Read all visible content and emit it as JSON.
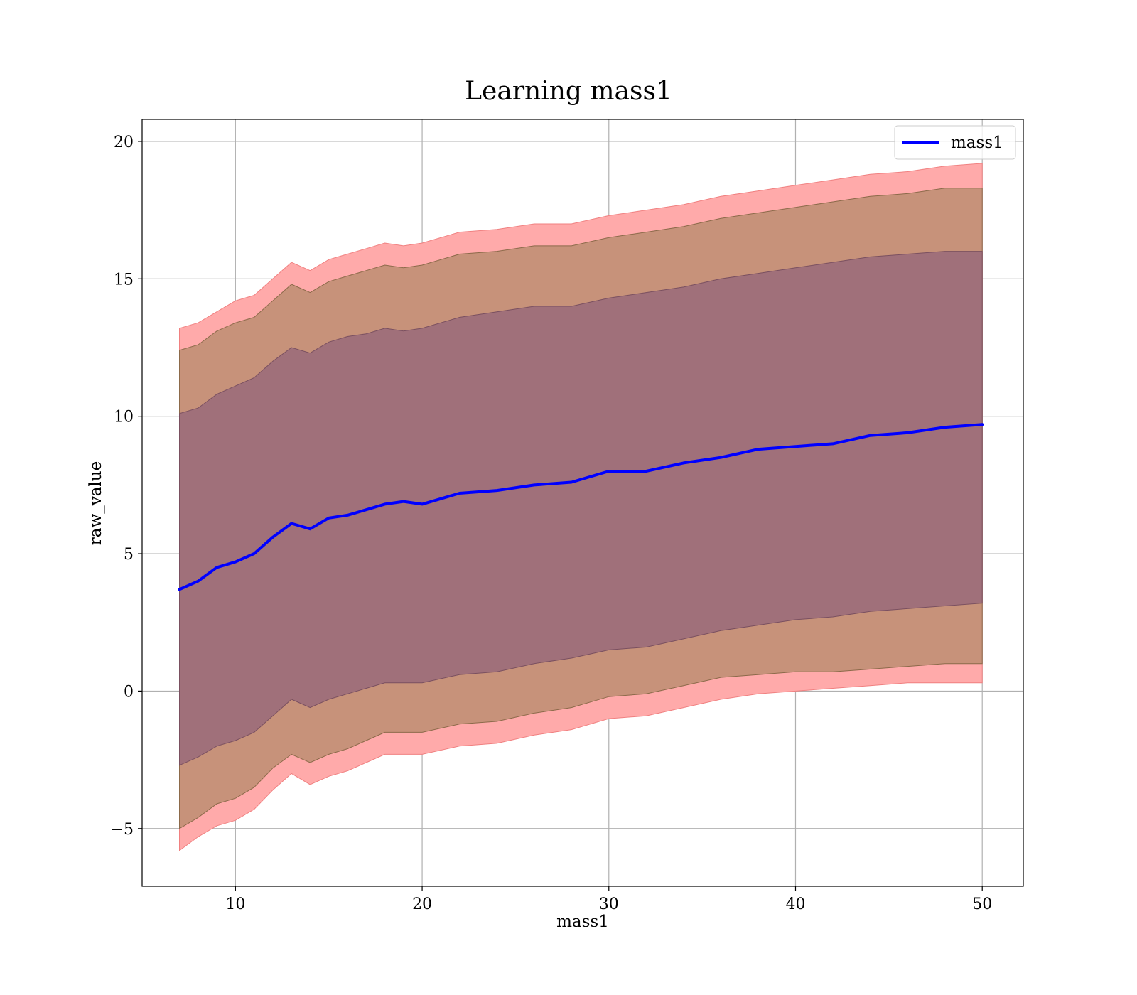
{
  "chart_data": {
    "type": "area",
    "title": "Learning mass1",
    "xlabel": "mass1",
    "ylabel": "raw_value",
    "xlim": [
      5.0,
      52.2
    ],
    "ylim": [
      -7.1,
      20.8
    ],
    "x_ticks": [
      10,
      20,
      30,
      40,
      50
    ],
    "y_ticks": [
      -5,
      0,
      5,
      10,
      15,
      20
    ],
    "x_tick_labels": [
      "10",
      "20",
      "30",
      "40",
      "50"
    ],
    "y_tick_labels": [
      "−5",
      "0",
      "5",
      "10",
      "15",
      "20"
    ],
    "grid": true,
    "legend": {
      "position": "top-right",
      "entries": [
        "mass1"
      ]
    },
    "colors": {
      "line": "#0000ff",
      "band_outer": "#ffaaaa",
      "band_middle": "#c7927a",
      "band_inner": "#a0707a",
      "grid": "#b0b0b0"
    },
    "series": [
      {
        "name": "mass1",
        "x": [
          7.0,
          8.0,
          9.0,
          10.0,
          11.0,
          12.0,
          13.0,
          14.0,
          15.0,
          16.0,
          17.0,
          18.0,
          19.0,
          20.0,
          22.0,
          24.0,
          26.0,
          28.0,
          30.0,
          32.0,
          34.0,
          36.0,
          38.0,
          40.0,
          42.0,
          44.0,
          46.0,
          48.0,
          50.0
        ],
        "y": [
          3.7,
          4.0,
          4.5,
          4.7,
          5.0,
          5.6,
          6.1,
          5.9,
          6.3,
          6.4,
          6.6,
          6.8,
          6.9,
          6.8,
          7.2,
          7.3,
          7.5,
          7.6,
          8.0,
          8.0,
          8.3,
          8.5,
          8.8,
          8.9,
          9.0,
          9.3,
          9.4,
          9.6,
          9.7
        ]
      }
    ],
    "bands": [
      {
        "level": "outer",
        "x": [
          7.0,
          8.0,
          9.0,
          10.0,
          11.0,
          12.0,
          13.0,
          14.0,
          15.0,
          16.0,
          17.0,
          18.0,
          19.0,
          20.0,
          22.0,
          24.0,
          26.0,
          28.0,
          30.0,
          32.0,
          34.0,
          36.0,
          38.0,
          40.0,
          42.0,
          44.0,
          46.0,
          48.0,
          50.0
        ],
        "lower": [
          -5.8,
          -5.3,
          -4.9,
          -4.7,
          -4.3,
          -3.6,
          -3.0,
          -3.4,
          -3.1,
          -2.9,
          -2.6,
          -2.3,
          -2.3,
          -2.3,
          -2.0,
          -1.9,
          -1.6,
          -1.4,
          -1.0,
          -0.9,
          -0.6,
          -0.3,
          -0.1,
          0.0,
          0.1,
          0.2,
          0.3,
          0.3,
          0.3
        ],
        "upper": [
          13.2,
          13.4,
          13.8,
          14.2,
          14.4,
          15.0,
          15.6,
          15.3,
          15.7,
          15.9,
          16.1,
          16.3,
          16.2,
          16.3,
          16.7,
          16.8,
          17.0,
          17.0,
          17.3,
          17.5,
          17.7,
          18.0,
          18.2,
          18.4,
          18.6,
          18.8,
          18.9,
          19.1,
          19.2
        ]
      },
      {
        "level": "middle",
        "x": [
          7.0,
          8.0,
          9.0,
          10.0,
          11.0,
          12.0,
          13.0,
          14.0,
          15.0,
          16.0,
          17.0,
          18.0,
          19.0,
          20.0,
          22.0,
          24.0,
          26.0,
          28.0,
          30.0,
          32.0,
          34.0,
          36.0,
          38.0,
          40.0,
          42.0,
          44.0,
          46.0,
          48.0,
          50.0
        ],
        "lower": [
          -5.0,
          -4.6,
          -4.1,
          -3.9,
          -3.5,
          -2.8,
          -2.3,
          -2.6,
          -2.3,
          -2.1,
          -1.8,
          -1.5,
          -1.5,
          -1.5,
          -1.2,
          -1.1,
          -0.8,
          -0.6,
          -0.2,
          -0.1,
          0.2,
          0.5,
          0.6,
          0.7,
          0.7,
          0.8,
          0.9,
          1.0,
          1.0
        ],
        "upper": [
          12.4,
          12.6,
          13.1,
          13.4,
          13.6,
          14.2,
          14.8,
          14.5,
          14.9,
          15.1,
          15.3,
          15.5,
          15.4,
          15.5,
          15.9,
          16.0,
          16.2,
          16.2,
          16.5,
          16.7,
          16.9,
          17.2,
          17.4,
          17.6,
          17.8,
          18.0,
          18.1,
          18.3,
          18.3
        ]
      },
      {
        "level": "inner",
        "x": [
          7.0,
          8.0,
          9.0,
          10.0,
          11.0,
          12.0,
          13.0,
          14.0,
          15.0,
          16.0,
          17.0,
          18.0,
          19.0,
          20.0,
          22.0,
          24.0,
          26.0,
          28.0,
          30.0,
          32.0,
          34.0,
          36.0,
          38.0,
          40.0,
          42.0,
          44.0,
          46.0,
          48.0,
          50.0
        ],
        "lower": [
          -2.7,
          -2.4,
          -2.0,
          -1.8,
          -1.5,
          -0.9,
          -0.3,
          -0.6,
          -0.3,
          -0.1,
          0.1,
          0.3,
          0.3,
          0.3,
          0.6,
          0.7,
          1.0,
          1.2,
          1.5,
          1.6,
          1.9,
          2.2,
          2.4,
          2.6,
          2.7,
          2.9,
          3.0,
          3.1,
          3.2
        ],
        "upper": [
          10.1,
          10.3,
          10.8,
          11.1,
          11.4,
          12.0,
          12.5,
          12.3,
          12.7,
          12.9,
          13.0,
          13.2,
          13.1,
          13.2,
          13.6,
          13.8,
          14.0,
          14.0,
          14.3,
          14.5,
          14.7,
          15.0,
          15.2,
          15.4,
          15.6,
          15.8,
          15.9,
          16.0,
          16.0
        ]
      }
    ]
  }
}
